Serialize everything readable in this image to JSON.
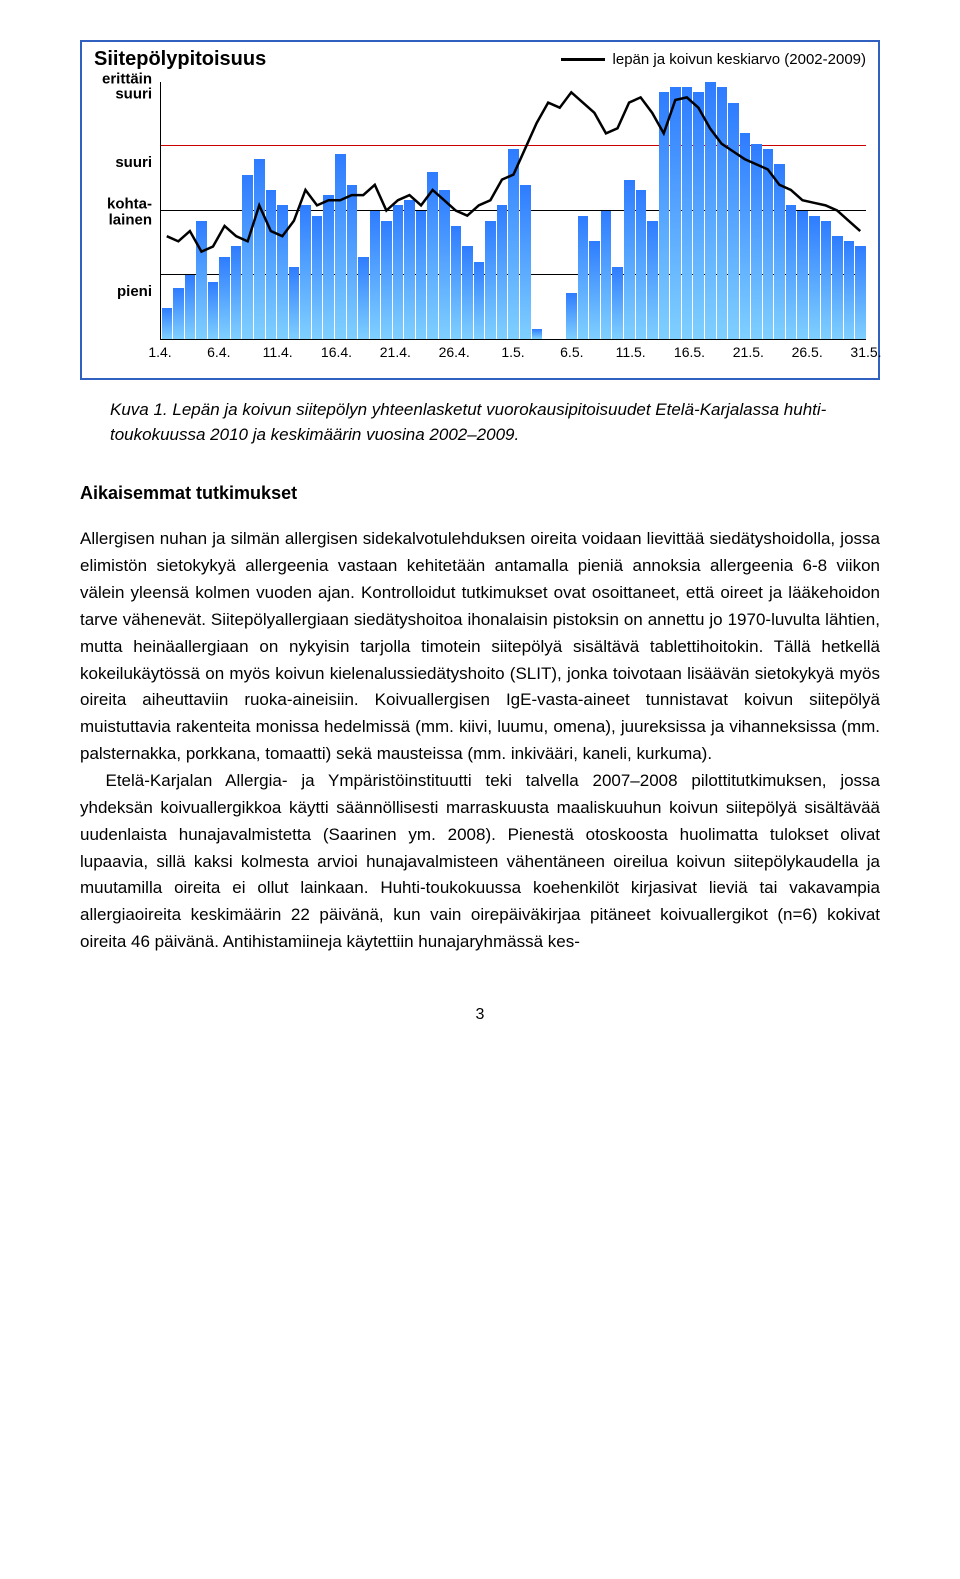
{
  "chart": {
    "title": "Siitepölypitoisuus",
    "legend_label": "lepän ja koivun keskiarvo (2002-2009)",
    "border_color": "#3060c0",
    "y_axis": {
      "levels": [
        {
          "label": "pieni",
          "pos": 12.5
        },
        {
          "label": "kohta-\nlainen",
          "pos": 37.5
        },
        {
          "label": "suuri",
          "pos": 62.5
        },
        {
          "label": "erittäin\nsuuri",
          "pos": 86
        }
      ],
      "gridlines": [
        {
          "pos": 25,
          "color": "#000000"
        },
        {
          "pos": 50,
          "color": "#000000"
        },
        {
          "pos": 75,
          "color": "#cc0000"
        }
      ]
    },
    "x_ticks": [
      "1.4.",
      "6.4.",
      "11.4.",
      "16.4.",
      "21.4.",
      "26.4.",
      "1.5.",
      "6.5.",
      "11.5.",
      "16.5.",
      "21.5.",
      "26.5.",
      "31.5."
    ],
    "bar_gradient_top": "#2e7cff",
    "bar_gradient_bottom": "#7fd0ff",
    "bars": [
      12,
      20,
      25,
      46,
      22,
      32,
      36,
      64,
      70,
      58,
      52,
      28,
      52,
      48,
      56,
      72,
      60,
      32,
      50,
      46,
      52,
      54,
      50,
      65,
      58,
      44,
      36,
      30,
      46,
      52,
      74,
      60,
      4,
      0,
      0,
      18,
      48,
      38,
      50,
      28,
      62,
      58,
      46,
      96,
      98,
      98,
      96,
      100,
      98,
      92,
      80,
      76,
      74,
      68,
      52,
      50,
      48,
      46,
      40,
      38,
      36
    ],
    "line_values": [
      40,
      38,
      42,
      34,
      36,
      44,
      40,
      38,
      52,
      42,
      40,
      46,
      58,
      52,
      54,
      54,
      56,
      56,
      60,
      50,
      54,
      56,
      52,
      58,
      54,
      50,
      48,
      52,
      54,
      62,
      64,
      74,
      84,
      92,
      90,
      96,
      92,
      88,
      80,
      82,
      92,
      94,
      88,
      80,
      93,
      94,
      90,
      82,
      76,
      73,
      70,
      68,
      66,
      60,
      58,
      54,
      53,
      52,
      50,
      46,
      42
    ],
    "line_color": "#000000",
    "line_width": 2.5
  },
  "caption": "Kuva 1. Lepän ja koivun siitepölyn yhteenlasketut vuorokausipitoisuudet Etelä-Karjalassa huhti-toukokuussa 2010 ja keskimäärin vuosina 2002–2009.",
  "heading": "Aikaisemmat tutkimukset",
  "paragraphs": [
    "Allergisen nuhan ja silmän allergisen sidekalvotulehduksen oireita voidaan lievittää siedätyshoidolla, jossa elimistön sietokykyä allergeenia vastaan kehitetään antamalla pieniä annoksia allergeenia 6-8 viikon välein yleensä kolmen vuoden ajan. Kontrolloidut tutkimukset ovat osoittaneet, että oireet ja lääkehoidon tarve vähenevät. Siitepölyallergiaan siedätyshoitoa ihonalaisin pistoksin on annettu jo 1970-luvulta lähtien, mutta heinäallergiaan on nykyisin tarjolla timotein siitepölyä sisältävä tablettihoitokin. Tällä hetkellä kokeilukäytössä on myös koivun kielenalussiedätyshoito (SLIT), jonka toivotaan lisäävän sietokykyä myös oireita aiheuttaviin ruoka-aineisiin. Koivuallergisen IgE-vasta-aineet tunnistavat koivun siitepölyä muistuttavia rakenteita monissa hedelmissä (mm. kiivi, luumu, omena), juureksissa ja vihanneksissa (mm. palsternakka, porkkana, tomaatti) sekä mausteissa (mm. inkivääri, kaneli, kurkuma).",
    "Etelä-Karjalan Allergia- ja Ympäristöinstituutti teki talvella 2007–2008 pilottitutkimuksen, jossa yhdeksän koivuallergikkoa käytti säännöllisesti marraskuusta maaliskuuhun koivun siitepölyä sisältävää uudenlaista hunajavalmistetta (Saarinen ym. 2008). Pienestä otoskoosta huolimatta tulokset olivat lupaavia, sillä kaksi kolmesta arvioi hunajavalmisteen vähentäneen oireilua koivun siitepölykaudella ja muutamilla oireita ei ollut lainkaan. Huhti-toukokuussa koehenkilöt kirjasivat lieviä tai vakavampia allergiaoireita keskimäärin 22 päivänä, kun vain oirepäiväkirjaa pitäneet koivuallergikot (n=6) kokivat oireita 46 päivänä. Antihistamiineja käytettiin hunajaryhmässä kes-"
  ],
  "page_number": "3"
}
